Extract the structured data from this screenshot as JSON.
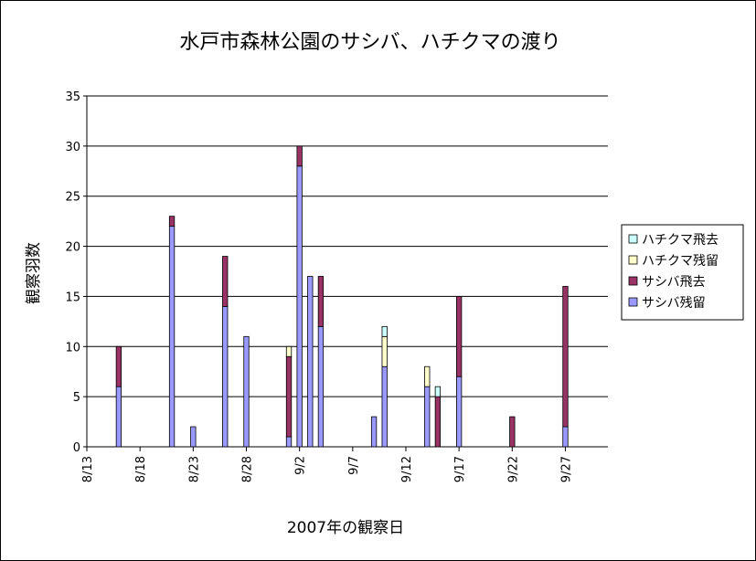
{
  "chart_data": {
    "type": "bar",
    "stacked": true,
    "title": "水戸市森林公園のサシバ、ハチクマの渡り",
    "xlabel": "2007年の観察日",
    "ylabel": "観察羽数",
    "ylim": [
      0,
      35
    ],
    "yticks": [
      "0",
      "5",
      "10",
      "15",
      "20",
      "25",
      "30",
      "35"
    ],
    "xticks": [
      "8/13",
      "8/18",
      "8/23",
      "8/28",
      "9/2",
      "9/7",
      "9/12",
      "9/17",
      "9/22",
      "9/27"
    ],
    "x_start": "8/13",
    "x_end": "10/1",
    "grid": true,
    "legend_position": "right",
    "series": [
      {
        "name": "サシバ残留",
        "color": "#9999ff"
      },
      {
        "name": "サシバ飛去",
        "color": "#993366"
      },
      {
        "name": "ハチクマ残留",
        "color": "#ffffcc"
      },
      {
        "name": "ハチクマ飛去",
        "color": "#ccffff"
      }
    ],
    "data": [
      {
        "date": "8/16",
        "values": [
          6,
          4,
          0,
          0
        ]
      },
      {
        "date": "8/21",
        "values": [
          22,
          1,
          0,
          0
        ]
      },
      {
        "date": "8/23",
        "values": [
          2,
          0,
          0,
          0
        ]
      },
      {
        "date": "8/26",
        "values": [
          14,
          5,
          0,
          0
        ]
      },
      {
        "date": "8/28",
        "values": [
          11,
          0,
          0,
          0
        ]
      },
      {
        "date": "9/1",
        "values": [
          1,
          8,
          1,
          0
        ]
      },
      {
        "date": "9/2",
        "values": [
          28,
          2,
          0,
          0
        ]
      },
      {
        "date": "9/3",
        "values": [
          17,
          0,
          0,
          0
        ]
      },
      {
        "date": "9/4",
        "values": [
          12,
          5,
          0,
          0
        ]
      },
      {
        "date": "9/9",
        "values": [
          3,
          0,
          0,
          0
        ]
      },
      {
        "date": "9/10",
        "values": [
          8,
          0,
          3,
          1
        ]
      },
      {
        "date": "9/14",
        "values": [
          6,
          0,
          2,
          0
        ]
      },
      {
        "date": "9/15",
        "values": [
          0,
          5,
          0,
          1
        ]
      },
      {
        "date": "9/17",
        "values": [
          7,
          8,
          0,
          0
        ]
      },
      {
        "date": "9/22",
        "values": [
          0,
          3,
          0,
          0
        ]
      },
      {
        "date": "9/27",
        "values": [
          2,
          14,
          0,
          0
        ]
      }
    ]
  }
}
